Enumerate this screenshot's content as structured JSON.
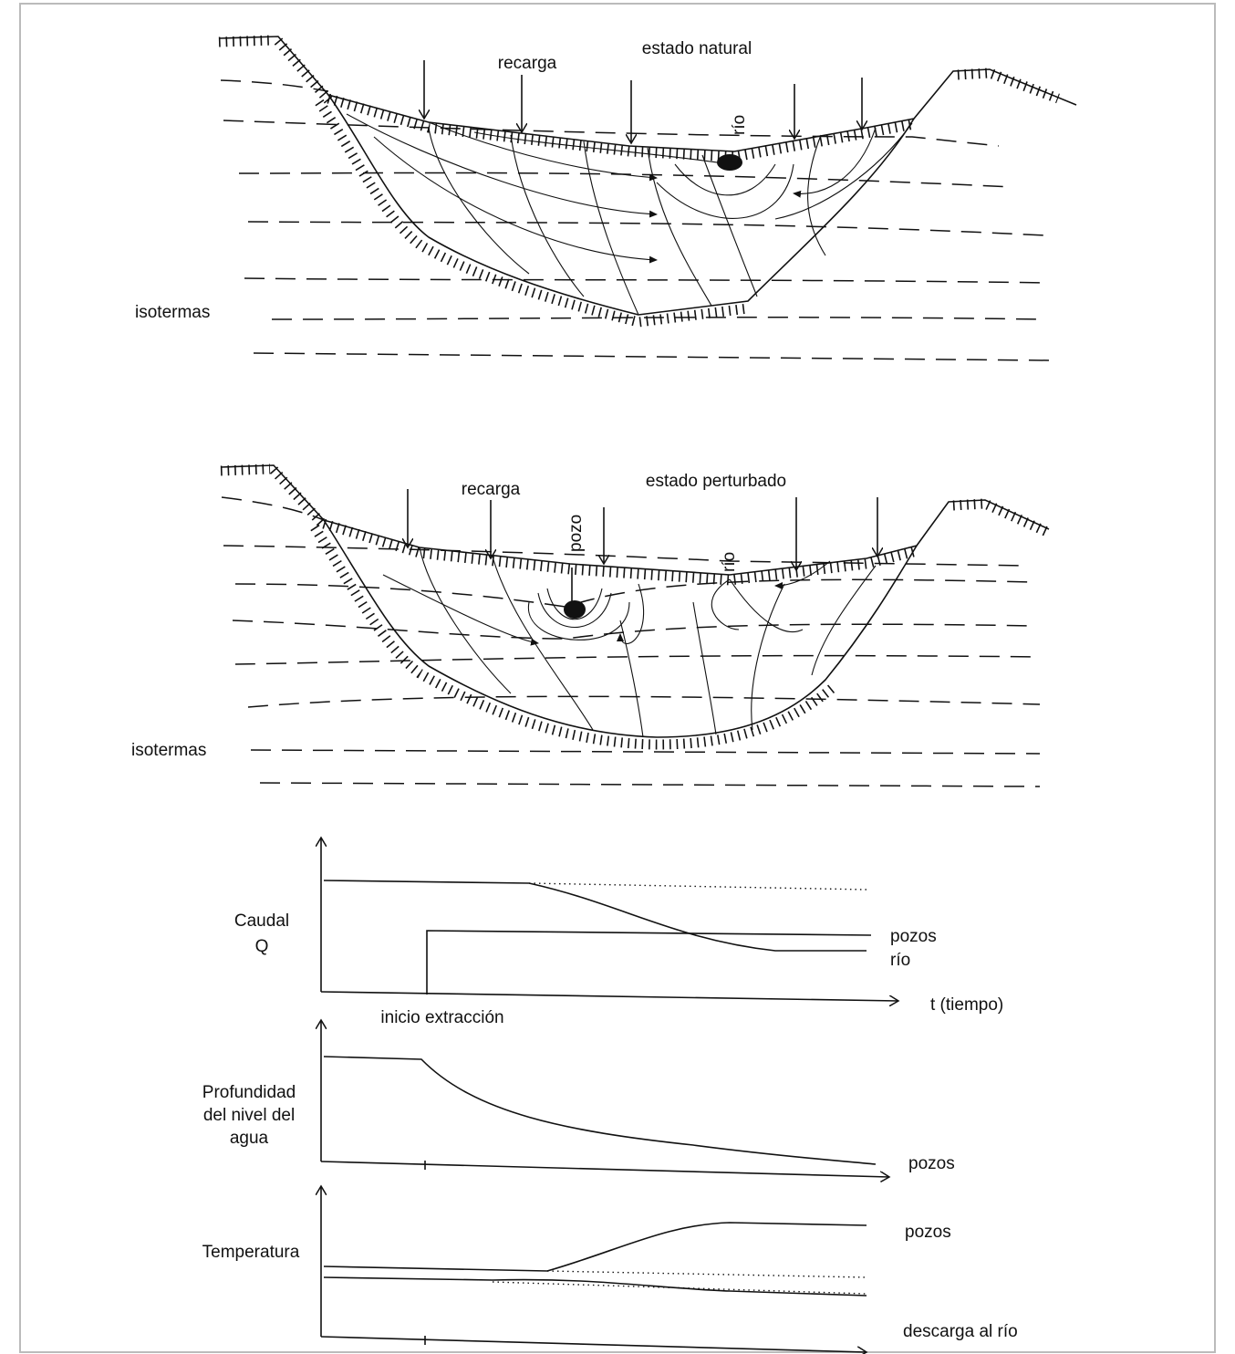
{
  "sections": [
    {
      "title": "estado natural",
      "recharge_label": "recarga",
      "river_label": "río",
      "isotherms_label": "isotermas"
    },
    {
      "title": "estado perturbado",
      "recharge_label": "recarga",
      "well_label": "pozo",
      "river_label": "río",
      "isotherms_label": "isotermas"
    }
  ],
  "graphs": {
    "flow": {
      "y_label": [
        "Caudal",
        "Q"
      ],
      "series_labels": [
        "pozos",
        "río"
      ],
      "x_label": "t (tiempo)",
      "event_label": "inicio extracción"
    },
    "depth": {
      "y_label": [
        "Profundidad",
        "del nivel del",
        "agua"
      ],
      "series_label": "pozos"
    },
    "temperature": {
      "y_label": "Temperatura",
      "series_labels": [
        "pozos",
        "descarga al río"
      ]
    }
  }
}
